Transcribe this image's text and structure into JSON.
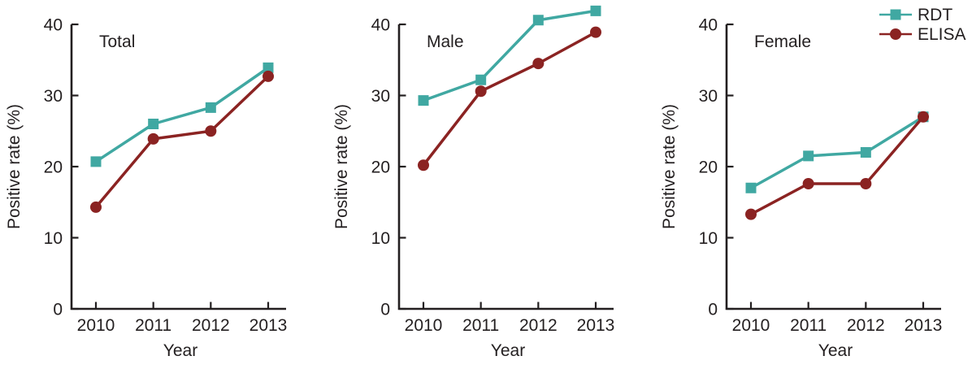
{
  "figure": {
    "ylabel": "Positive rate (%)",
    "xlabel": "Year",
    "axis_color": "#231f20",
    "background": "#ffffff",
    "legend": {
      "position": "top-right",
      "items": [
        {
          "label": "RDT",
          "marker": "square",
          "color": "#40a8a2"
        },
        {
          "label": "ELISA",
          "marker": "circle",
          "color": "#8b2322"
        }
      ]
    }
  },
  "chart_data": [
    {
      "type": "line",
      "title": "Total",
      "xlabel": "Year",
      "ylabel": "Positive rate (%)",
      "categories": [
        "2010",
        "2011",
        "2012",
        "2013"
      ],
      "yticks": [
        0,
        10,
        20,
        30,
        40
      ],
      "ylim": [
        0,
        40
      ],
      "grid": false,
      "series": [
        {
          "name": "RDT",
          "marker": "square",
          "color": "#40a8a2",
          "values": [
            20.7,
            26.0,
            28.3,
            33.9
          ]
        },
        {
          "name": "ELISA",
          "marker": "circle",
          "color": "#8b2322",
          "values": [
            14.3,
            23.9,
            25.0,
            32.7
          ]
        }
      ],
      "show_legend": false
    },
    {
      "type": "line",
      "title": "Male",
      "xlabel": "Year",
      "ylabel": "Positive rate (%)",
      "categories": [
        "2010",
        "2011",
        "2012",
        "2013"
      ],
      "yticks": [
        0,
        10,
        20,
        30,
        40
      ],
      "ylim": [
        0,
        40
      ],
      "grid": false,
      "series": [
        {
          "name": "RDT",
          "marker": "square",
          "color": "#40a8a2",
          "values": [
            29.3,
            32.2,
            40.6,
            41.9
          ]
        },
        {
          "name": "ELISA",
          "marker": "circle",
          "color": "#8b2322",
          "values": [
            20.2,
            30.6,
            34.5,
            38.9
          ]
        }
      ],
      "show_legend": false
    },
    {
      "type": "line",
      "title": "Female",
      "xlabel": "Year",
      "ylabel": "Positive rate (%)",
      "categories": [
        "2010",
        "2011",
        "2012",
        "2013"
      ],
      "yticks": [
        0,
        10,
        20,
        30,
        40
      ],
      "ylim": [
        0,
        40
      ],
      "grid": false,
      "series": [
        {
          "name": "RDT",
          "marker": "square",
          "color": "#40a8a2",
          "values": [
            17.0,
            21.5,
            22.0,
            27.0
          ]
        },
        {
          "name": "ELISA",
          "marker": "circle",
          "color": "#8b2322",
          "values": [
            13.3,
            17.6,
            17.6,
            27.0
          ]
        }
      ],
      "show_legend": true
    }
  ]
}
